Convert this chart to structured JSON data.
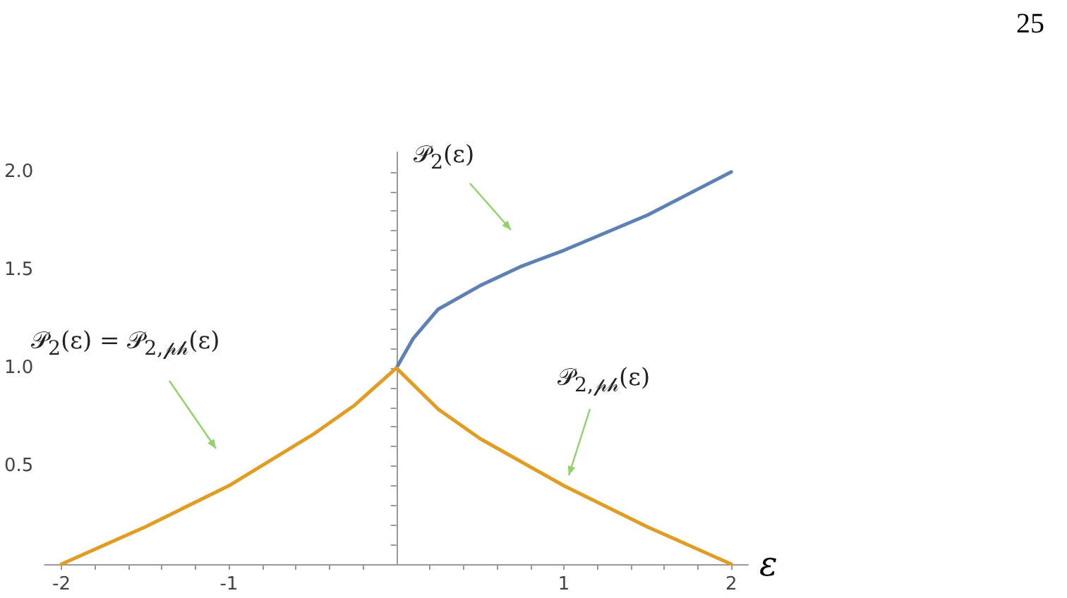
{
  "chart_data": {
    "type": "line",
    "xlabel": "ε",
    "xlim": [
      -2.1,
      2.1
    ],
    "ylim": [
      0,
      2.1
    ],
    "xticks": [
      -2,
      {
        "value": -1.8,
        "label": null
      },
      {
        "value": -1.6,
        "label": null
      },
      {
        "value": -1.4,
        "label": null
      },
      {
        "value": -1.2,
        "label": null
      },
      -1,
      {
        "value": -0.8,
        "label": null
      },
      {
        "value": -0.6,
        "label": null
      },
      {
        "value": -0.4,
        "label": null
      },
      {
        "value": -0.2,
        "label": null
      },
      {
        "value": 0.2,
        "label": null
      },
      {
        "value": 0.4,
        "label": null
      },
      {
        "value": 0.6,
        "label": null
      },
      {
        "value": 0.8,
        "label": null
      },
      1,
      {
        "value": 1.2,
        "label": null
      },
      {
        "value": 1.4,
        "label": null
      },
      {
        "value": 1.6,
        "label": null
      },
      {
        "value": 1.8,
        "label": null
      },
      2
    ],
    "yticks": [
      {
        "value": 0.1,
        "label": null
      },
      {
        "value": 0.2,
        "label": null
      },
      {
        "value": 0.3,
        "label": null
      },
      {
        "value": 0.4,
        "label": null
      },
      {
        "value": 0.5,
        "label": "0.5"
      },
      {
        "value": 0.6,
        "label": null
      },
      {
        "value": 0.7,
        "label": null
      },
      {
        "value": 0.8,
        "label": null
      },
      {
        "value": 0.9,
        "label": null
      },
      {
        "value": 1,
        "label": "1.0"
      },
      {
        "value": 1.1,
        "label": null
      },
      {
        "value": 1.2,
        "label": null
      },
      {
        "value": 1.3,
        "label": null
      },
      {
        "value": 1.4,
        "label": null
      },
      {
        "value": 1.5,
        "label": "1.5"
      },
      {
        "value": 1.6,
        "label": null
      },
      {
        "value": 1.7,
        "label": null
      },
      {
        "value": 1.8,
        "label": null
      },
      {
        "value": 1.9,
        "label": null
      },
      {
        "value": 2,
        "label": "2.0"
      }
    ],
    "series": [
      {
        "color": "#5e81b5",
        "x": [
          0,
          0.1,
          0.25,
          0.5,
          0.75,
          1,
          1.25,
          1.5,
          1.75,
          2
        ],
        "values": [
          1,
          1.15,
          1.3,
          1.42,
          1.52,
          1.6,
          1.69,
          1.78,
          1.89,
          2.0
        ]
      },
      {
        "color": "#e19c24",
        "x": [
          -2,
          -1.5,
          -1,
          -0.5,
          -0.25,
          0,
          0.25,
          0.5,
          1,
          1.5,
          2
        ],
        "values": [
          0,
          0.19,
          0.4,
          0.66,
          0.81,
          1,
          0.79,
          0.64,
          0.4,
          0.19,
          0
        ]
      }
    ],
    "annotations": [
      "25",
      "𝒫$_{2}$(ε)",
      "𝒫$_{2}$(ε) = 𝒫$_{2,𝓅𝒽}$(ε)",
      "𝒫$_{2,𝓅𝒽}$(ε)"
    ],
    "grid": false,
    "marker": "none",
    "line_style": "solid"
  }
}
